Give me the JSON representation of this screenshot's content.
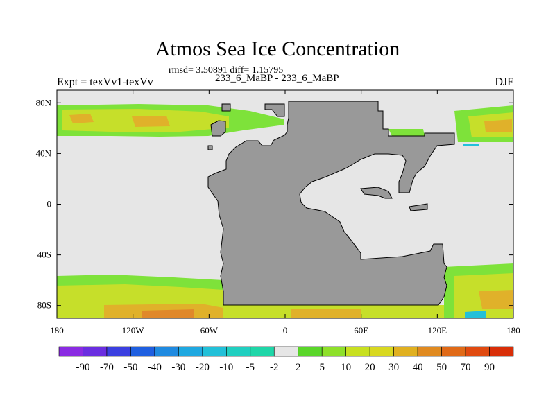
{
  "title": "Atmos Sea Ice Concentration",
  "stats": "rmsd= 3.50891 diff= 1.15795",
  "left_label": "Expt = texVv1-texVv",
  "center_label": "233_6_MaBP - 233_6_MaBP",
  "right_label": "DJF",
  "lat_ticks": [
    "80N",
    "40N",
    "0",
    "40S",
    "80S"
  ],
  "lon_ticks": [
    "180",
    "120W",
    "60W",
    "0",
    "60E",
    "120E",
    "180"
  ],
  "colorbar_labels": [
    "-90",
    "-70",
    "-50",
    "-40",
    "-30",
    "-20",
    "-10",
    "-5",
    "-2",
    "2",
    "5",
    "10",
    "20",
    "30",
    "40",
    "50",
    "70",
    "90"
  ],
  "colorbar_colors": [
    "#8a2be2",
    "#6a2ee0",
    "#3b3fe0",
    "#1f5fe0",
    "#1f8ae0",
    "#1fa8e0",
    "#22c0d8",
    "#20cfc0",
    "#1fd6a8",
    "#e6e6e6",
    "#5ad62a",
    "#8ee02a",
    "#c8e020",
    "#d8d820",
    "#e0b020",
    "#e08a20",
    "#e06a18",
    "#e04a10",
    "#d82e08"
  ],
  "colors": {
    "background_field": "#e6e6e6",
    "land": "#999999",
    "ice_light": "#7ee23a",
    "ice_mid": "#c6df2a",
    "ice_high": "#e0b12a",
    "ice_max": "#e0882a"
  }
}
